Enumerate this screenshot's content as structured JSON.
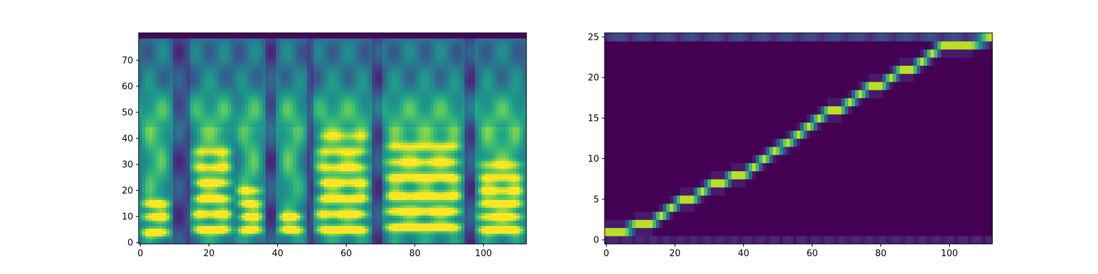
{
  "chart_data": [
    {
      "type": "heatmap",
      "title": "",
      "xlabel": "",
      "ylabel": "",
      "xlim": [
        0,
        112
      ],
      "ylim": [
        0,
        80
      ],
      "xticks": [
        0,
        20,
        40,
        60,
        80,
        100
      ],
      "yticks": [
        0,
        10,
        20,
        30,
        40,
        50,
        60,
        70
      ],
      "colormap": "viridis",
      "grid": false,
      "legend": "none",
      "description_of_values": "mel spectrogram: 112 frames x 80 mel bins",
      "voiced_segments": [
        {
          "x_start": 0,
          "x_end": 9,
          "formant_bands": [
            4,
            10,
            15
          ]
        },
        {
          "x_start": 15,
          "x_end": 27,
          "formant_bands": [
            5,
            11,
            17,
            23,
            29,
            35
          ]
        },
        {
          "x_start": 28,
          "x_end": 36,
          "formant_bands": [
            5,
            10,
            15,
            20
          ]
        },
        {
          "x_start": 40,
          "x_end": 48,
          "formant_bands": [
            5,
            10
          ]
        },
        {
          "x_start": 51,
          "x_end": 67,
          "formant_bands": [
            5,
            11,
            17,
            23,
            29,
            35,
            41
          ]
        },
        {
          "x_start": 71,
          "x_end": 94,
          "formant_bands": [
            6,
            12,
            18,
            25,
            31,
            37
          ]
        },
        {
          "x_start": 98,
          "x_end": 112,
          "formant_bands": [
            5,
            10,
            15,
            20,
            25,
            30
          ]
        }
      ]
    },
    {
      "type": "heatmap",
      "title": "",
      "xlabel": "",
      "ylabel": "",
      "xlim": [
        0,
        112
      ],
      "ylim": [
        0,
        25
      ],
      "xticks": [
        0,
        20,
        40,
        60,
        80,
        100
      ],
      "yticks": [
        0,
        5,
        10,
        15,
        20,
        25
      ],
      "colormap": "viridis",
      "grid": false,
      "legend": "none",
      "description_of_values": "attention alignment: decoder step (x) vs encoder step (y)",
      "alignment_path": [
        [
          0,
          1
        ],
        [
          5,
          1
        ],
        [
          9,
          2
        ],
        [
          13,
          2
        ],
        [
          16,
          3
        ],
        [
          19,
          4
        ],
        [
          22,
          5
        ],
        [
          25,
          5
        ],
        [
          28,
          6
        ],
        [
          31,
          7
        ],
        [
          34,
          7
        ],
        [
          37,
          8
        ],
        [
          40,
          8
        ],
        [
          43,
          9
        ],
        [
          46,
          10
        ],
        [
          49,
          11
        ],
        [
          53,
          12
        ],
        [
          56,
          13
        ],
        [
          59,
          14
        ],
        [
          62,
          15
        ],
        [
          65,
          16
        ],
        [
          68,
          16
        ],
        [
          71,
          17
        ],
        [
          74,
          18
        ],
        [
          77,
          19
        ],
        [
          80,
          19
        ],
        [
          83,
          20
        ],
        [
          86,
          21
        ],
        [
          89,
          21
        ],
        [
          92,
          22
        ],
        [
          95,
          23
        ],
        [
          98,
          24
        ],
        [
          102,
          24
        ],
        [
          106,
          24
        ],
        [
          112,
          25
        ]
      ]
    }
  ]
}
